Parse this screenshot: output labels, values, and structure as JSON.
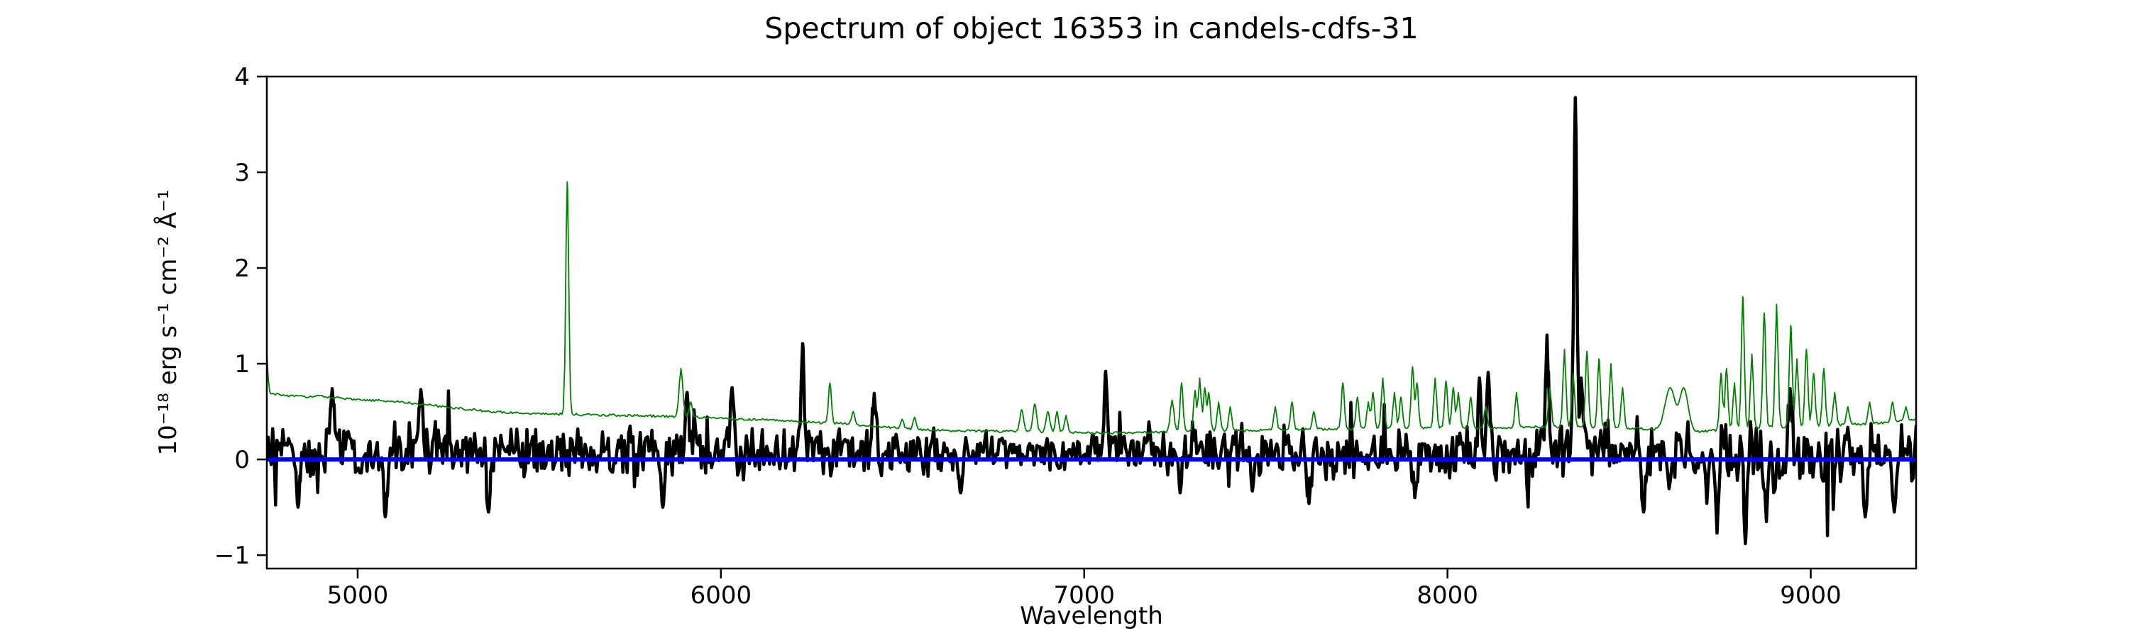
{
  "chart_data": {
    "type": "line",
    "title": "Spectrum of object 16353 in candels-cdfs-31",
    "xlabel": "Wavelength",
    "ylabel": "10⁻¹⁸ erg s⁻¹ cm⁻² Å⁻¹",
    "xlim": [
      4750,
      9290
    ],
    "ylim": [
      -1.14,
      4.0
    ],
    "grid": false,
    "legend": null,
    "xticks": {
      "values": [
        5000,
        6000,
        7000,
        8000,
        9000
      ],
      "labels": [
        "5000",
        "6000",
        "7000",
        "8000",
        "9000"
      ]
    },
    "yticks": {
      "values": [
        -1,
        0,
        1,
        2,
        3,
        4
      ],
      "labels": [
        "−1",
        "0",
        "1",
        "2",
        "3",
        "4"
      ]
    },
    "axis_color": "#000000",
    "series": [
      {
        "name": "flux",
        "description": "observed object spectrum (noisy black trace)",
        "color": "#000000",
        "linewidth": 4.5,
        "noise_seed": 16353,
        "sample_step": 4,
        "baseline_segments": [
          [
            4750,
            5400,
            0.1,
            0.26
          ],
          [
            5400,
            6000,
            0.1,
            0.25
          ],
          [
            6000,
            6600,
            0.08,
            0.24
          ],
          [
            6600,
            7000,
            0.06,
            0.16
          ],
          [
            7000,
            7600,
            0.08,
            0.21
          ],
          [
            7600,
            8300,
            0.07,
            0.27
          ],
          [
            8300,
            8600,
            0.1,
            0.26
          ],
          [
            8600,
            9050,
            0.02,
            0.34
          ],
          [
            9050,
            9290,
            0.05,
            0.28
          ]
        ],
        "features": [
          [
            4836,
            -0.5,
            5
          ],
          [
            4930,
            0.74,
            5
          ],
          [
            5076,
            -0.6,
            5
          ],
          [
            5174,
            0.73,
            5
          ],
          [
            5360,
            -0.55,
            5
          ],
          [
            5840,
            -0.5,
            5
          ],
          [
            5907,
            0.7,
            5
          ],
          [
            6031,
            0.75,
            5
          ],
          [
            6225,
            1.21,
            4
          ],
          [
            6422,
            0.69,
            5
          ],
          [
            6660,
            -0.35,
            5
          ],
          [
            7059,
            0.92,
            4
          ],
          [
            7264,
            -0.35,
            4
          ],
          [
            7463,
            -0.33,
            4
          ],
          [
            7619,
            -0.46,
            4
          ],
          [
            7910,
            -0.4,
            4
          ],
          [
            8088,
            0.85,
            4
          ],
          [
            8112,
            0.91,
            4
          ],
          [
            8274,
            1.3,
            4
          ],
          [
            8352,
            3.78,
            4
          ],
          [
            8368,
            0.85,
            4
          ],
          [
            8540,
            -0.55,
            5
          ],
          [
            8742,
            -0.77,
            4
          ],
          [
            8820,
            -0.88,
            4
          ],
          [
            8878,
            -0.65,
            4
          ],
          [
            8943,
            0.74,
            5
          ],
          [
            9150,
            -0.6,
            5
          ],
          [
            9230,
            -0.55,
            5
          ]
        ]
      },
      {
        "name": "error",
        "description": "noise / sky error spectrum (thin green trace)",
        "color": "#008000",
        "linewidth": 1.8,
        "noise_seed": 31,
        "jitter": 0.012,
        "sample_step": 4,
        "continuum": [
          [
            4750,
            1.11
          ],
          [
            4756,
            0.7
          ],
          [
            4790,
            0.67
          ],
          [
            4850,
            0.655
          ],
          [
            4900,
            0.66
          ],
          [
            4950,
            0.64
          ],
          [
            5000,
            0.62
          ],
          [
            5060,
            0.615
          ],
          [
            5120,
            0.6
          ],
          [
            5180,
            0.575
          ],
          [
            5240,
            0.55
          ],
          [
            5300,
            0.525
          ],
          [
            5360,
            0.5
          ],
          [
            5450,
            0.485
          ],
          [
            5550,
            0.475
          ],
          [
            5650,
            0.465
          ],
          [
            5750,
            0.46
          ],
          [
            5850,
            0.45
          ],
          [
            5950,
            0.44
          ],
          [
            6050,
            0.42
          ],
          [
            6150,
            0.41
          ],
          [
            6250,
            0.39
          ],
          [
            6350,
            0.37
          ],
          [
            6450,
            0.34
          ],
          [
            6550,
            0.31
          ],
          [
            6650,
            0.3
          ],
          [
            6750,
            0.295
          ],
          [
            6850,
            0.29
          ],
          [
            6950,
            0.285
          ],
          [
            7050,
            0.275
          ],
          [
            7150,
            0.28
          ],
          [
            7250,
            0.29
          ],
          [
            7350,
            0.3
          ],
          [
            7450,
            0.3
          ],
          [
            7550,
            0.31
          ],
          [
            7650,
            0.315
          ],
          [
            7750,
            0.32
          ],
          [
            7850,
            0.325
          ],
          [
            7950,
            0.33
          ],
          [
            8050,
            0.33
          ],
          [
            8150,
            0.33
          ],
          [
            8250,
            0.34
          ],
          [
            8350,
            0.34
          ],
          [
            8450,
            0.33
          ],
          [
            8550,
            0.32
          ],
          [
            8680,
            0.29
          ],
          [
            8730,
            0.3
          ],
          [
            8800,
            0.32
          ],
          [
            8900,
            0.34
          ],
          [
            9000,
            0.35
          ],
          [
            9080,
            0.36
          ],
          [
            9150,
            0.37
          ],
          [
            9220,
            0.39
          ],
          [
            9290,
            0.42
          ]
        ],
        "sky_lines": [
          [
            5577,
            2.9,
            4
          ],
          [
            5890,
            0.95,
            5
          ],
          [
            5917,
            0.6,
            4
          ],
          [
            6300,
            0.8,
            4
          ],
          [
            6364,
            0.5,
            4
          ],
          [
            6499,
            0.42,
            4
          ],
          [
            6533,
            0.44,
            4
          ],
          [
            6828,
            0.52,
            5
          ],
          [
            6864,
            0.58,
            5
          ],
          [
            6900,
            0.5,
            5
          ],
          [
            6925,
            0.5,
            4
          ],
          [
            6950,
            0.46,
            4
          ],
          [
            7242,
            0.62,
            5
          ],
          [
            7268,
            0.8,
            4
          ],
          [
            7305,
            0.72,
            4
          ],
          [
            7318,
            0.85,
            4
          ],
          [
            7332,
            0.75,
            4
          ],
          [
            7343,
            0.7,
            4
          ],
          [
            7370,
            0.6,
            4
          ],
          [
            7402,
            0.55,
            4
          ],
          [
            7526,
            0.55,
            4
          ],
          [
            7572,
            0.6,
            4
          ],
          [
            7632,
            0.5,
            4
          ],
          [
            7712,
            0.8,
            4
          ],
          [
            7752,
            0.65,
            4
          ],
          [
            7782,
            0.6,
            4
          ],
          [
            7795,
            0.7,
            4
          ],
          [
            7822,
            0.85,
            4
          ],
          [
            7854,
            0.7,
            4
          ],
          [
            7872,
            0.65,
            4
          ],
          [
            7904,
            0.97,
            4
          ],
          [
            7916,
            0.8,
            4
          ],
          [
            7966,
            0.85,
            4
          ],
          [
            7996,
            0.82,
            4
          ],
          [
            8016,
            0.75,
            4
          ],
          [
            8030,
            0.7,
            4
          ],
          [
            8064,
            0.65,
            4
          ],
          [
            8105,
            0.55,
            4
          ],
          [
            8190,
            0.7,
            4
          ],
          [
            8282,
            0.75,
            4
          ],
          [
            8322,
            1.15,
            4
          ],
          [
            8346,
            0.9,
            4
          ],
          [
            8384,
            1.13,
            4
          ],
          [
            8417,
            1.05,
            4
          ],
          [
            8450,
            1.0,
            4
          ],
          [
            8482,
            0.75,
            4
          ],
          [
            8613,
            0.75,
            14
          ],
          [
            8650,
            0.75,
            12
          ],
          [
            8753,
            0.9,
            4
          ],
          [
            8768,
            0.95,
            4
          ],
          [
            8790,
            0.8,
            4
          ],
          [
            8813,
            1.7,
            4
          ],
          [
            8838,
            1.1,
            4
          ],
          [
            8872,
            1.53,
            4
          ],
          [
            8906,
            1.62,
            4
          ],
          [
            8945,
            1.4,
            4
          ],
          [
            8962,
            1.05,
            4
          ],
          [
            8988,
            1.15,
            4
          ],
          [
            9008,
            0.9,
            4
          ],
          [
            9036,
            0.95,
            4
          ],
          [
            9066,
            0.7,
            4
          ],
          [
            9102,
            0.55,
            4
          ],
          [
            9162,
            0.6,
            4
          ],
          [
            9225,
            0.6,
            4
          ],
          [
            9262,
            0.55,
            4
          ]
        ]
      },
      {
        "name": "zero-line",
        "description": "horizontal reference line at flux = 0",
        "color": "#0000ff",
        "linewidth": 6,
        "y": 0
      }
    ]
  }
}
